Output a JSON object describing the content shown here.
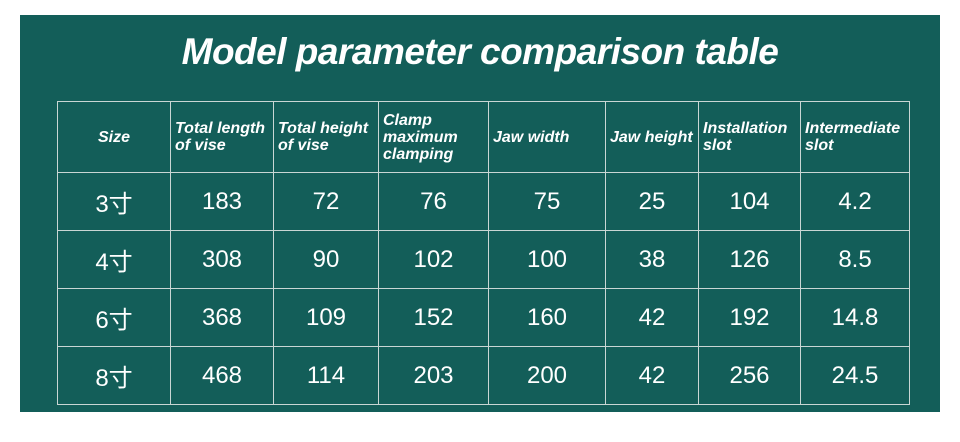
{
  "header": {
    "title": "Model parameter comparison table"
  },
  "table": {
    "columns": [
      "Size",
      "Total length of vise",
      "Total height of vise",
      "Clamp maximum clamping",
      "Jaw width",
      "Jaw height",
      "Installation slot",
      "Intermediate slot"
    ],
    "rows": [
      [
        "3寸",
        183,
        72,
        76,
        75,
        25,
        104,
        4.2
      ],
      [
        "4寸",
        308,
        90,
        102,
        100,
        38,
        126,
        8.5
      ],
      [
        "6寸",
        368,
        109,
        152,
        160,
        42,
        192,
        14.8
      ],
      [
        "8寸",
        468,
        114,
        203,
        200,
        42,
        256,
        24.5
      ]
    ]
  }
}
